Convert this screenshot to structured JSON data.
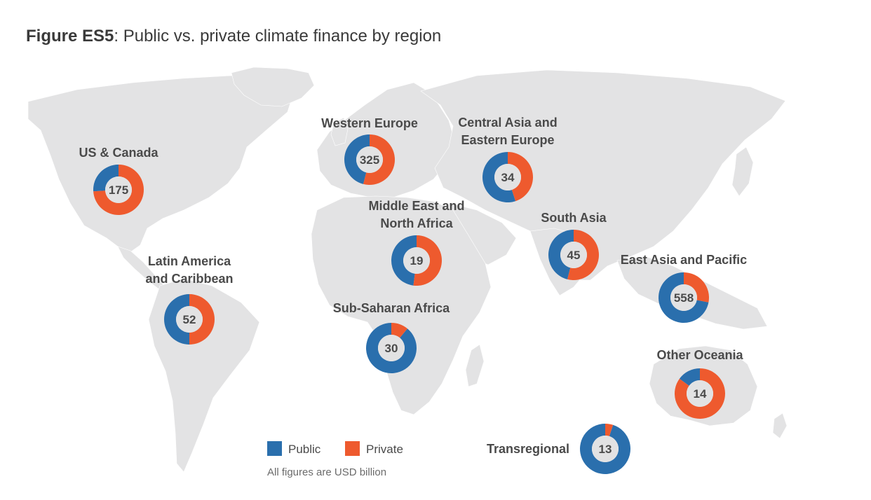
{
  "title": {
    "prefix": "Figure ES5",
    "rest": ": Public vs. private climate finance by region"
  },
  "colors": {
    "public": "#2a6fad",
    "private": "#ee5a2e",
    "land": "#e3e3e4",
    "center": "#e2e2e3",
    "text": "#4a4a4a"
  },
  "legend": {
    "public": "Public",
    "private": "Private",
    "note": "All figures are USD billion"
  },
  "chart_data": {
    "type": "pie",
    "unit": "USD billion",
    "series_names": [
      "Public",
      "Private"
    ],
    "regions": [
      {
        "name_lines": [
          "US & Canada"
        ],
        "total": "175",
        "public_share": 0.26,
        "private_share": 0.74
      },
      {
        "name_lines": [
          "Western Europe"
        ],
        "total": "325",
        "public_share": 0.46,
        "private_share": 0.54
      },
      {
        "name_lines": [
          "Central Asia and",
          "Eastern Europe"
        ],
        "total": "34",
        "public_share": 0.55,
        "private_share": 0.45
      },
      {
        "name_lines": [
          "Middle East and",
          "North Africa"
        ],
        "total": "19",
        "public_share": 0.48,
        "private_share": 0.52
      },
      {
        "name_lines": [
          "South Asia"
        ],
        "total": "45",
        "public_share": 0.46,
        "private_share": 0.54
      },
      {
        "name_lines": [
          "East Asia and Pacific"
        ],
        "total": "558",
        "public_share": 0.72,
        "private_share": 0.28
      },
      {
        "name_lines": [
          "Latin America",
          "and Caribbean"
        ],
        "total": "52",
        "public_share": 0.5,
        "private_share": 0.5
      },
      {
        "name_lines": [
          "Sub-Saharan Africa"
        ],
        "total": "30",
        "public_share": 0.89,
        "private_share": 0.11
      },
      {
        "name_lines": [
          "Other Oceania"
        ],
        "total": "14",
        "public_share": 0.15,
        "private_share": 0.85
      },
      {
        "name_lines": [
          "Transregional"
        ],
        "total": "13",
        "public_share": 0.95,
        "private_share": 0.05
      }
    ]
  }
}
